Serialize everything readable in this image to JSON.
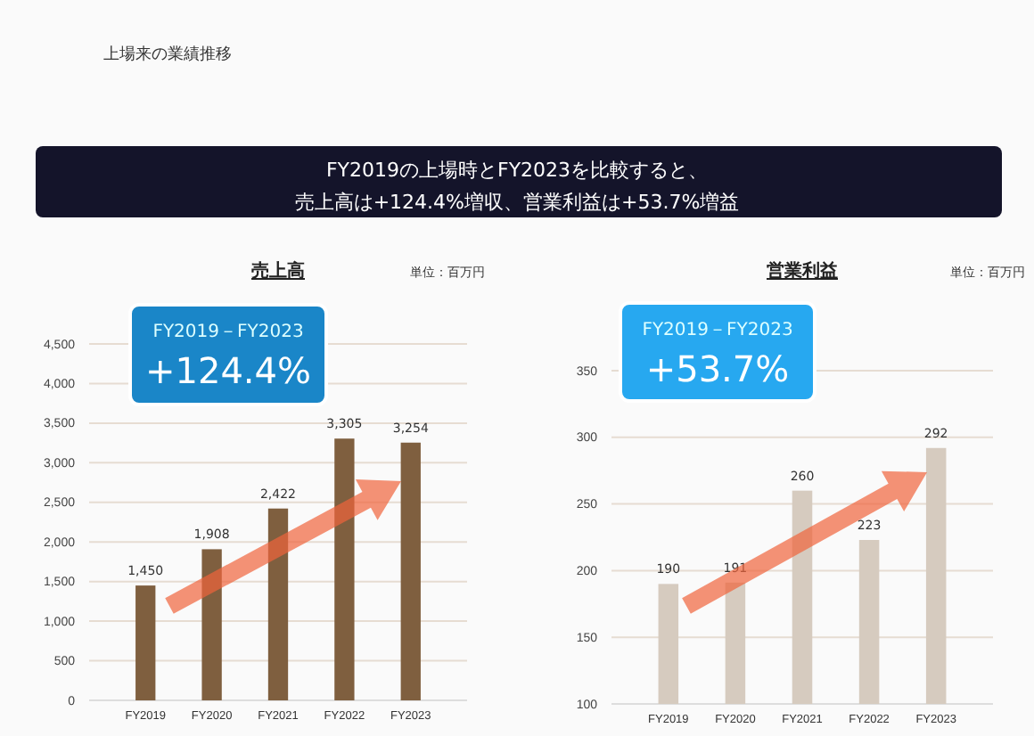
{
  "chart_data": [
    {
      "type": "bar",
      "title": "売上高",
      "categories": [
        "FY2019",
        "FY2020",
        "FY2021",
        "FY2022",
        "FY2023"
      ],
      "values": [
        1450,
        1908,
        2422,
        3305,
        3254
      ],
      "color": "#7f5f3f",
      "ylim": [
        0,
        4500
      ],
      "yticks": [
        {
          "value": 0,
          "label": "0"
        },
        {
          "value": 500,
          "label": "500"
        },
        {
          "value": 1000,
          "label": "1,000"
        },
        {
          "value": 1500,
          "label": "1,500"
        },
        {
          "value": 2000,
          "label": "2,000"
        },
        {
          "value": 2500,
          "label": "2,500"
        },
        {
          "value": 3000,
          "label": "3,000"
        },
        {
          "value": 3500,
          "label": "3,500"
        },
        {
          "value": 4000,
          "label": "4,000"
        },
        {
          "value": 4500,
          "label": "4,500"
        }
      ],
      "grid": "y",
      "value_labels": [
        "1,450",
        "1,908",
        "2,422",
        "3,305",
        "3,254"
      ],
      "annotations": [
        "単位：百万円",
        "FY2019－FY2023",
        "+124.4%",
        "上場来の業績推移",
        "FY2019の上場時とFY2023を比較すると、",
        "売上高は+124.4%増収、営業利益は+53.7%増益"
      ]
    },
    {
      "type": "bar",
      "title": "営業利益",
      "categories": [
        "FY2019",
        "FY2020",
        "FY2021",
        "FY2022",
        "FY2023"
      ],
      "values": [
        190,
        191,
        260,
        223,
        292
      ],
      "color": "#d6cbbf",
      "ylim": [
        100,
        350
      ],
      "yticks": [
        100,
        150,
        200,
        250,
        300,
        350
      ],
      "grid": "y",
      "data_labels": true,
      "annotations": [
        "単位：百万円",
        "FY2019－FY2023",
        "+53.7%"
      ]
    }
  ]
}
